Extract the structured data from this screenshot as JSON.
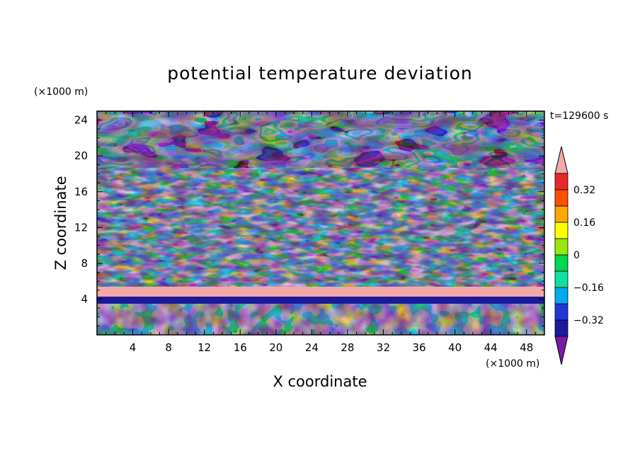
{
  "chart_data": {
    "type": "heatmap",
    "title": "potential temperature deviation",
    "xlabel": "X coordinate",
    "ylabel": "Z coordinate",
    "x_unit_label": "(×1000 m)",
    "y_unit_label": "(×1000 m)",
    "time_label": "t=129600 s",
    "xlim": [
      0,
      50
    ],
    "ylim": [
      0,
      25
    ],
    "xticks": [
      4,
      8,
      12,
      16,
      20,
      24,
      28,
      32,
      36,
      40,
      44,
      48
    ],
    "yticks": [
      4,
      8,
      12,
      16,
      20,
      24
    ],
    "contour_levels": [
      -0.4,
      -0.32,
      -0.24,
      -0.16,
      -0.08,
      0,
      0.08,
      0.16,
      0.24,
      0.32,
      0.4
    ],
    "colorbar_labels": [
      "0.32",
      "0.16",
      "0",
      "−0.16",
      "−0.32"
    ],
    "colorbar_label_values": [
      0.32,
      0.16,
      0,
      -0.16,
      -0.32
    ],
    "colorbar_colors": [
      "#7a1aa8",
      "#1a1a9a",
      "#2038d8",
      "#00aaee",
      "#10e0a0",
      "#00d850",
      "#98e810",
      "#ffff00",
      "#ffa800",
      "#ff5000",
      "#e82828",
      "#f4a8a8"
    ],
    "features": {
      "upper_band_top": 19,
      "upper_band_bottom": 25,
      "mid_band_top": 7.5,
      "mid_band_bottom": 18,
      "thin_pink_layer_z": 4,
      "lower_band_top": 3.5,
      "lower_band_bottom": 0
    }
  }
}
